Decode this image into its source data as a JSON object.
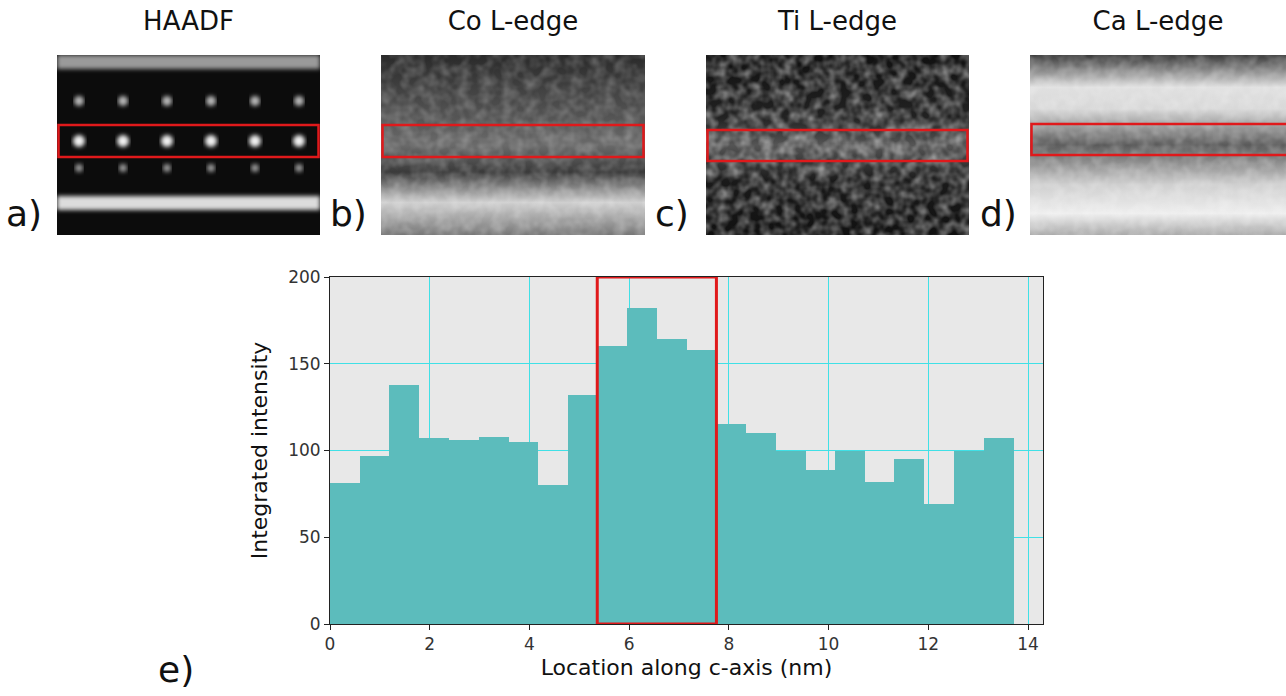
{
  "panels": [
    {
      "letter": "a)",
      "title": "HAADF"
    },
    {
      "letter": "b)",
      "title": "Co L-edge"
    },
    {
      "letter": "c)",
      "title": "Ti L-edge"
    },
    {
      "letter": "d)",
      "title": "Ca L-edge"
    }
  ],
  "chart_letter": "e)",
  "chart_data": {
    "type": "histogram",
    "xlabel": "Location along c-axis (nm)",
    "ylabel": "Integrated intensity",
    "bins": [
      0,
      0.6,
      1.19,
      1.79,
      2.38,
      2.98,
      3.58,
      4.17,
      4.77,
      5.36,
      5.96,
      6.56,
      7.15,
      7.75,
      8.34,
      8.94,
      9.54,
      10.13,
      10.73,
      11.32,
      11.92,
      12.52,
      13.11,
      13.71
    ],
    "counts": [
      81,
      97,
      138,
      107,
      106,
      108,
      105,
      80,
      132,
      160,
      182,
      164,
      158,
      115,
      110,
      100,
      89,
      100,
      82,
      95,
      69,
      100,
      107
    ],
    "color": "#5cbcbc",
    "xlim": [
      0,
      14.3
    ],
    "ylim": [
      0,
      200
    ],
    "xticks": [
      0,
      2,
      4,
      6,
      8,
      10,
      12,
      14
    ],
    "yticks": [
      0,
      50,
      100,
      150,
      200
    ],
    "grid": true,
    "highlight": [
      5.36,
      7.75
    ]
  }
}
